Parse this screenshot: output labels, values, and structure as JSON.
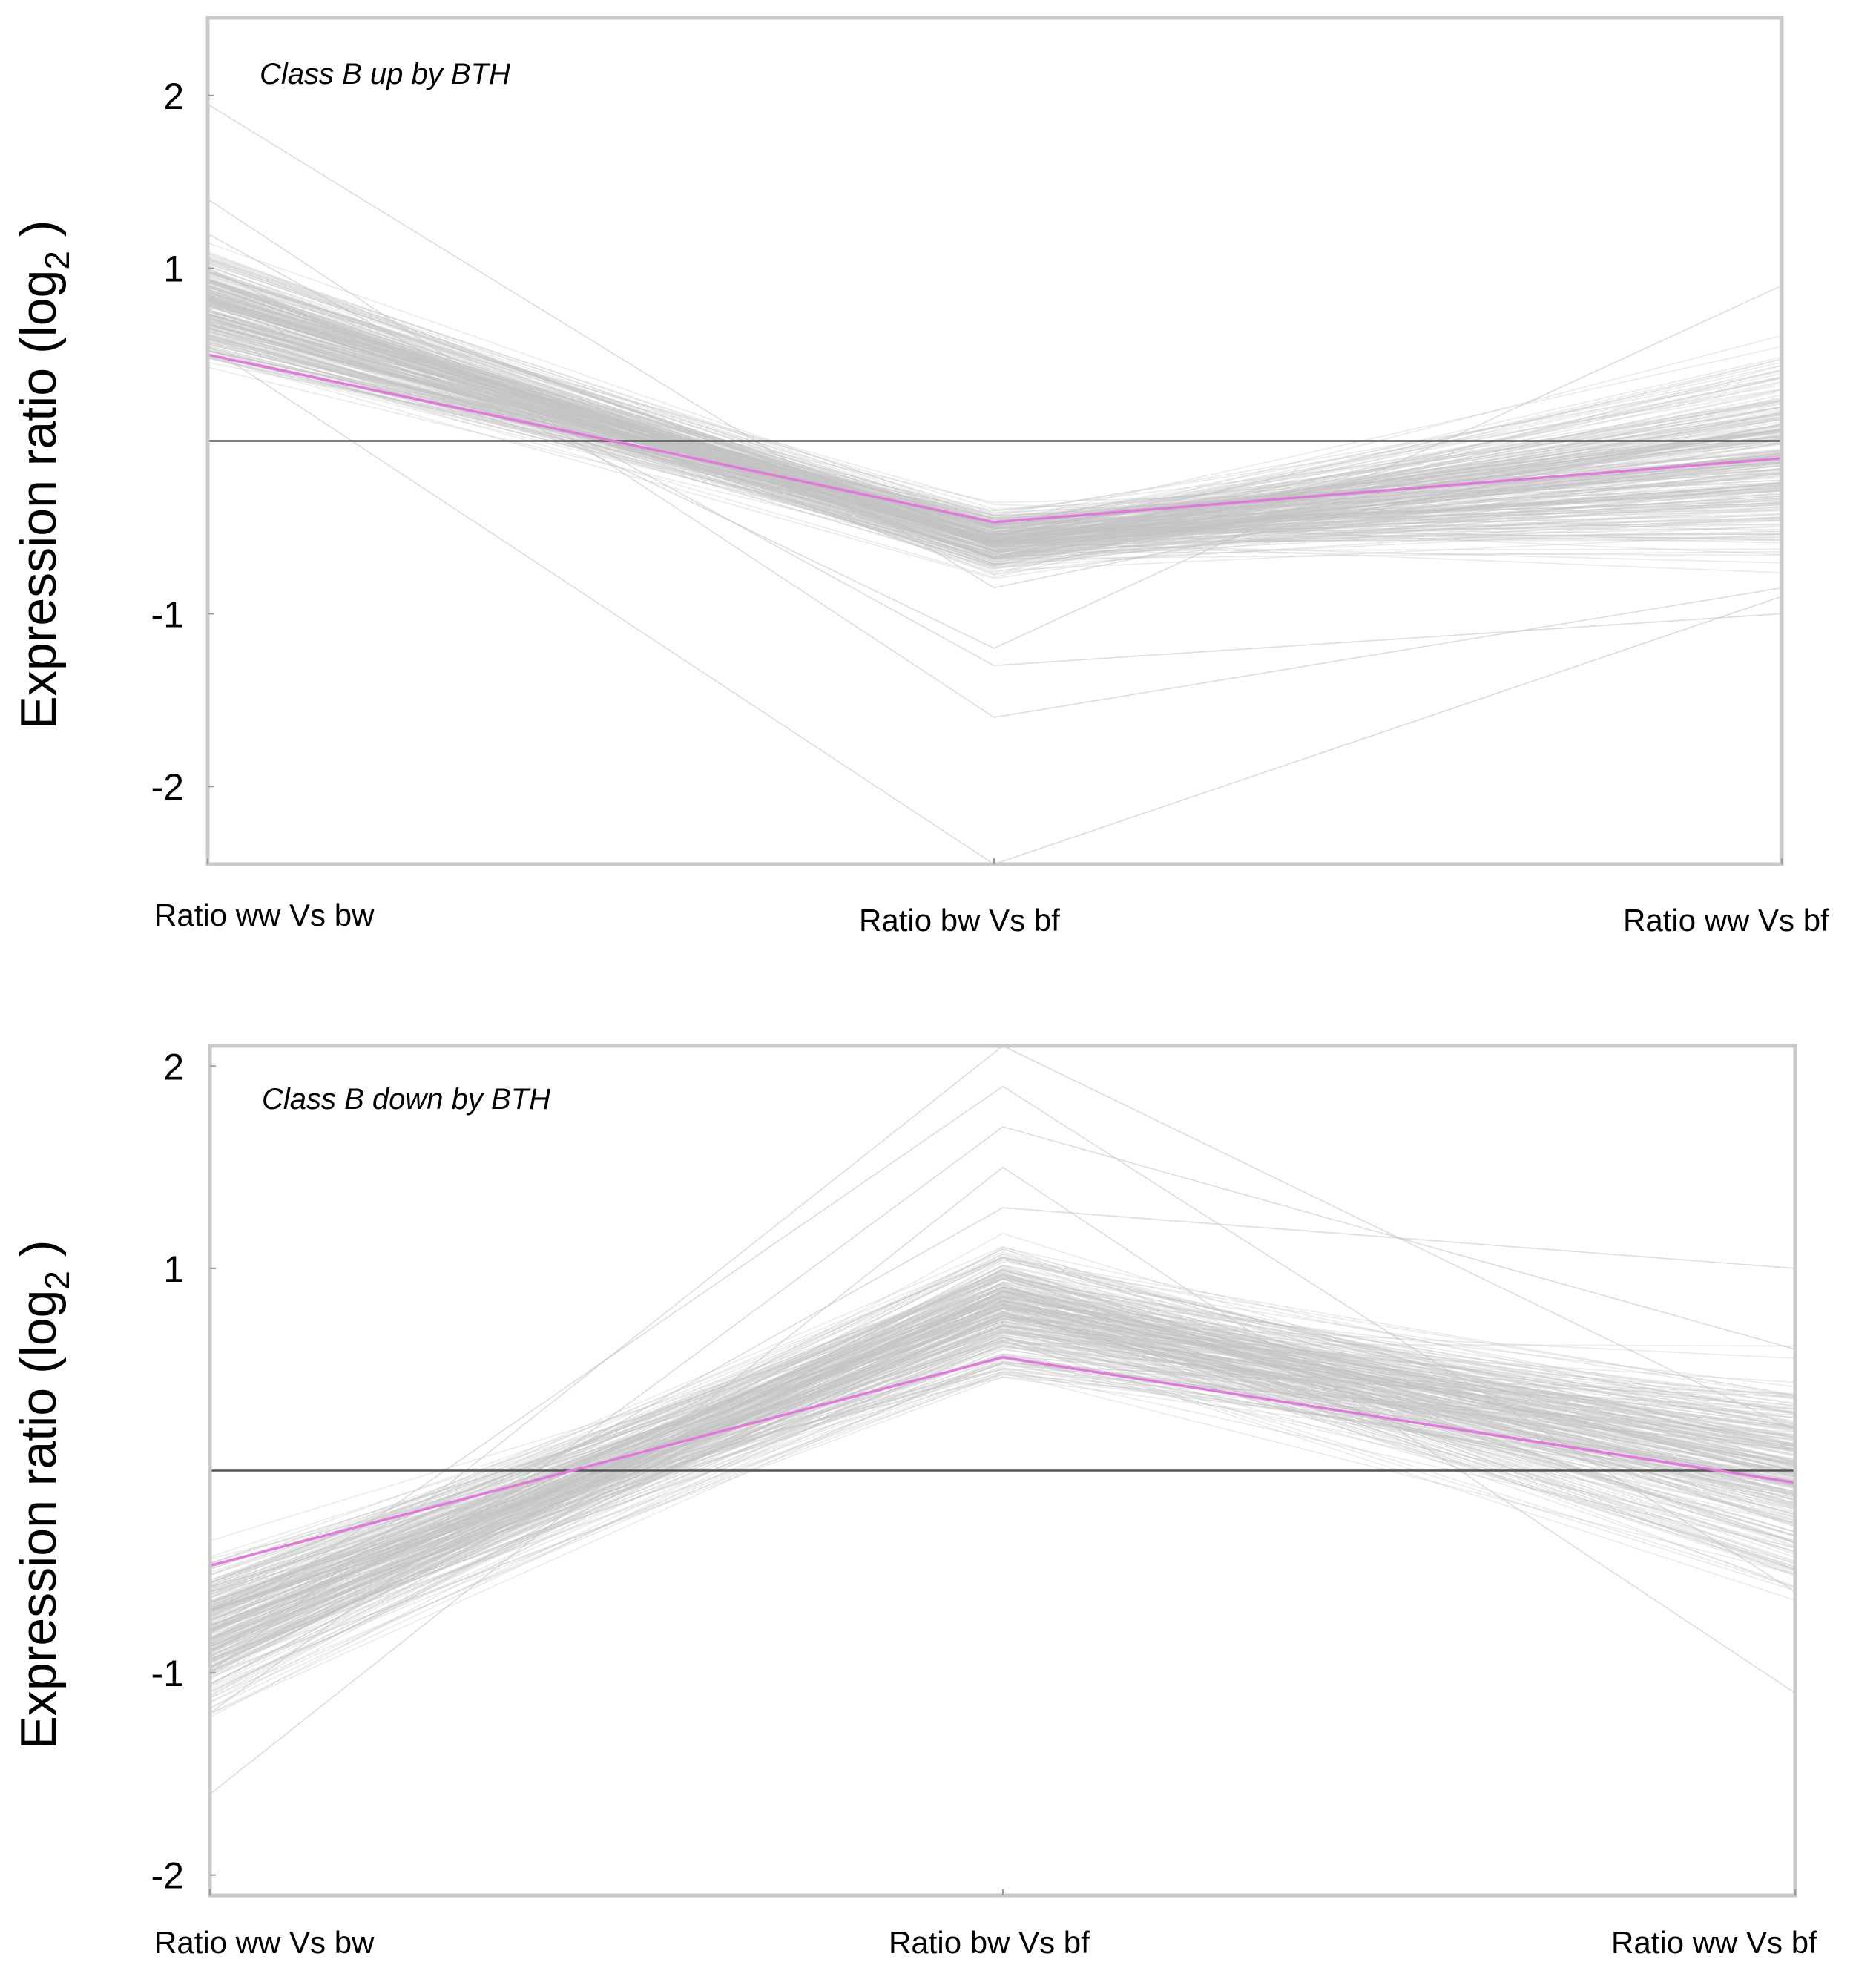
{
  "chart_data": [
    {
      "type": "line",
      "title": "Class B up by BTH",
      "ylabel": "Expression ratio (log",
      "ylabel_sub": "2",
      "ylabel_close": " )",
      "categories": [
        "Ratio ww Vs bw",
        "Ratio bw Vs bf",
        "Ratio ww Vs bf"
      ],
      "ylim": [
        -2.45,
        2.45
      ],
      "yticks": [
        2,
        1,
        -1,
        -2
      ],
      "ytick_labels": [
        "2",
        "1",
        "-1",
        "-2"
      ],
      "reference_line": 0,
      "mean_series": {
        "name": "mean",
        "color": "#e07ad8",
        "values": [
          0.5,
          -0.47,
          -0.1
        ]
      },
      "gene_profile_bands": {
        "color": "#c4c4c4",
        "ranges": [
          [
            0.25,
            1.5
          ],
          [
            -1.0,
            -0.25
          ],
          [
            -1.15,
            1.0
          ]
        ],
        "count": 260
      },
      "outliers": [
        [
          1.95,
          -0.85,
          0.1
        ],
        [
          1.4,
          -1.6,
          -0.85
        ],
        [
          0.55,
          -2.45,
          -0.9
        ],
        [
          1.2,
          -1.3,
          -1.0
        ],
        [
          1.0,
          -1.2,
          0.9
        ]
      ]
    },
    {
      "type": "line",
      "title": "Class B down by BTH",
      "ylabel": "Expression ratio (log",
      "ylabel_sub": "2",
      "ylabel_close": " )",
      "categories": [
        "Ratio ww Vs bw",
        "Ratio bw Vs bf",
        "Ratio ww Vs bf"
      ],
      "ylim": [
        -2.1,
        2.1
      ],
      "yticks": [
        2,
        1,
        -1,
        -2
      ],
      "ytick_labels": [
        "2",
        "1",
        "-1",
        "-2"
      ],
      "reference_line": 0,
      "mean_series": {
        "name": "mean",
        "color": "#e07ad8",
        "values": [
          -0.47,
          0.56,
          -0.06
        ]
      },
      "gene_profile_bands": {
        "color": "#c4c4c4",
        "ranges": [
          [
            -1.6,
            -0.2
          ],
          [
            0.25,
            1.5
          ],
          [
            -1.1,
            1.0
          ]
        ],
        "count": 260
      },
      "outliers": [
        [
          -1.0,
          2.1,
          0.2
        ],
        [
          -0.8,
          1.9,
          -0.6
        ],
        [
          -1.2,
          1.7,
          0.6
        ],
        [
          -1.6,
          1.5,
          -1.1
        ],
        [
          -0.9,
          1.3,
          1.0
        ]
      ]
    }
  ]
}
